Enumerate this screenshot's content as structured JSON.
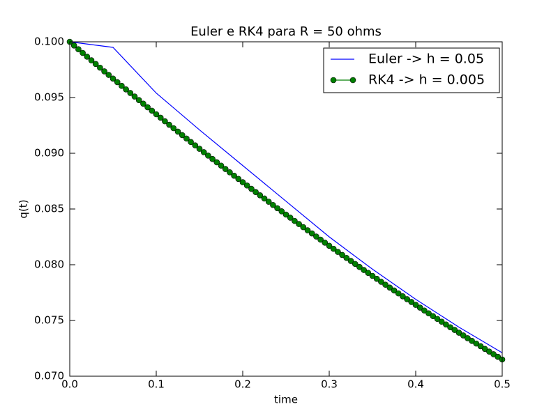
{
  "chart_data": {
    "type": "line",
    "title": "Euler e RK4 para R = 50 ohms",
    "xlabel": "time",
    "ylabel": "q(t)",
    "xlim": [
      0,
      0.5
    ],
    "ylim": [
      0.07,
      0.1
    ],
    "xticks": [
      {
        "value": 0,
        "label": "0.0"
      },
      0.1,
      0.2,
      0.3,
      0.4,
      0.5
    ],
    "yticks": [
      {
        "value": 0.07,
        "label": "0.070"
      },
      {
        "value": 0.075,
        "label": "0.075"
      },
      {
        "value": 0.08,
        "label": "0.080"
      },
      {
        "value": 0.085,
        "label": "0.085"
      },
      {
        "value": 0.09,
        "label": "0.090"
      },
      {
        "value": 0.095,
        "label": "0.095"
      },
      {
        "value": 0.1,
        "label": "0.100"
      }
    ],
    "legend": "upper right",
    "grid": false,
    "series": [
      {
        "name": "Euler -> h = 0.05",
        "color": "#0000ff",
        "marker": false,
        "x": [
          0,
          0.05,
          0.1,
          0.15,
          0.2,
          0.25,
          0.3,
          0.35,
          0.4,
          0.45,
          0.5
        ],
        "values": [
          0.1,
          0.0995,
          0.0954,
          0.0921,
          0.0889,
          0.0857,
          0.0825,
          0.0796,
          0.0769,
          0.0744,
          0.0721
        ]
      },
      {
        "name": "RK4 -> h = 0.005",
        "color": "#008000",
        "marker": true,
        "x": [
          0,
          0.005,
          0.01,
          0.015,
          0.02,
          0.025,
          0.03,
          0.035,
          0.04,
          0.045,
          0.05,
          0.055,
          0.06,
          0.065,
          0.07,
          0.075,
          0.08,
          0.085,
          0.09,
          0.095,
          0.1,
          0.105,
          0.11,
          0.115,
          0.12,
          0.125,
          0.13,
          0.135,
          0.14,
          0.145,
          0.15,
          0.155,
          0.16,
          0.165,
          0.17,
          0.175,
          0.18,
          0.185,
          0.19,
          0.195,
          0.2,
          0.205,
          0.21,
          0.215,
          0.22,
          0.225,
          0.23,
          0.235,
          0.24,
          0.245,
          0.25,
          0.255,
          0.26,
          0.265,
          0.27,
          0.275,
          0.28,
          0.285,
          0.29,
          0.295,
          0.3,
          0.305,
          0.31,
          0.315,
          0.32,
          0.325,
          0.33,
          0.335,
          0.34,
          0.345,
          0.35,
          0.355,
          0.36,
          0.365,
          0.37,
          0.375,
          0.38,
          0.385,
          0.39,
          0.395,
          0.4,
          0.405,
          0.41,
          0.415,
          0.42,
          0.425,
          0.43,
          0.435,
          0.44,
          0.445,
          0.45,
          0.455,
          0.46,
          0.465,
          0.47,
          0.475,
          0.48,
          0.485,
          0.49,
          0.495,
          0.5
        ],
        "values": [
          0.1,
          0.09967,
          0.09933,
          0.099,
          0.09867,
          0.09834,
          0.09801,
          0.09768,
          0.09735,
          0.09703,
          0.0967,
          0.09638,
          0.09605,
          0.09573,
          0.09541,
          0.09509,
          0.09477,
          0.09445,
          0.09413,
          0.09382,
          0.0935,
          0.09319,
          0.09287,
          0.09256,
          0.09225,
          0.09194,
          0.09163,
          0.09132,
          0.09101,
          0.09071,
          0.0904,
          0.0901,
          0.08979,
          0.08949,
          0.08919,
          0.08889,
          0.08859,
          0.08829,
          0.08799,
          0.0877,
          0.0874,
          0.08711,
          0.08681,
          0.08652,
          0.08623,
          0.08594,
          0.08565,
          0.08536,
          0.08507,
          0.08479,
          0.0845,
          0.08422,
          0.08393,
          0.08365,
          0.08337,
          0.08309,
          0.08281,
          0.08253,
          0.08225,
          0.08198,
          0.0817,
          0.08143,
          0.08115,
          0.08088,
          0.08061,
          0.08034,
          0.08007,
          0.0798,
          0.07953,
          0.07927,
          0.079,
          0.07874,
          0.07847,
          0.07821,
          0.07795,
          0.07769,
          0.07743,
          0.07717,
          0.07691,
          0.07666,
          0.0764,
          0.07615,
          0.07589,
          0.07564,
          0.07539,
          0.07514,
          0.07489,
          0.07464,
          0.07439,
          0.07415,
          0.0739,
          0.07366,
          0.07341,
          0.07317,
          0.07293,
          0.07269,
          0.07245,
          0.07221,
          0.07197,
          0.07174,
          0.0715
        ]
      }
    ]
  }
}
